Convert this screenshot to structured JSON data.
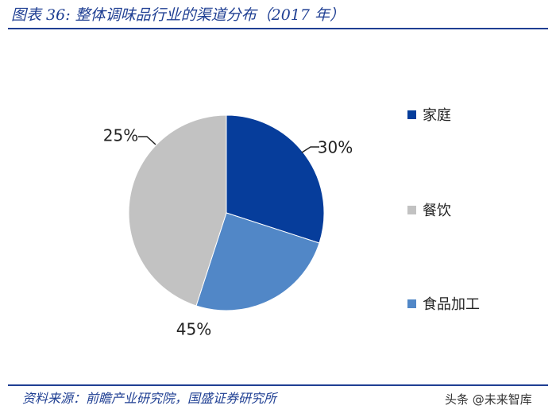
{
  "header": {
    "title": "图表 36:  整体调味品行业的渠道分布（2017 年）"
  },
  "footer": {
    "source": "资料来源：前瞻产业研究院，国盛证券研究所",
    "watermark": "头条 @未来智库"
  },
  "chart_data": {
    "type": "pie",
    "categories": [
      "家庭",
      "食品加工",
      "餐饮"
    ],
    "values": [
      30,
      25,
      45
    ],
    "labels": [
      "30%",
      "25%",
      "45%"
    ],
    "colors": [
      "#063d9b",
      "#5187c7",
      "#c2c2c2"
    ],
    "start_angle_deg": 0,
    "direction": "clockwise-from-top",
    "legend": {
      "placement": "right",
      "items": [
        {
          "label": "家庭",
          "color": "#063d9b"
        },
        {
          "label": "餐饮",
          "color": "#c2c2c2"
        },
        {
          "label": "食品加工",
          "color": "#5187c7"
        }
      ]
    }
  }
}
